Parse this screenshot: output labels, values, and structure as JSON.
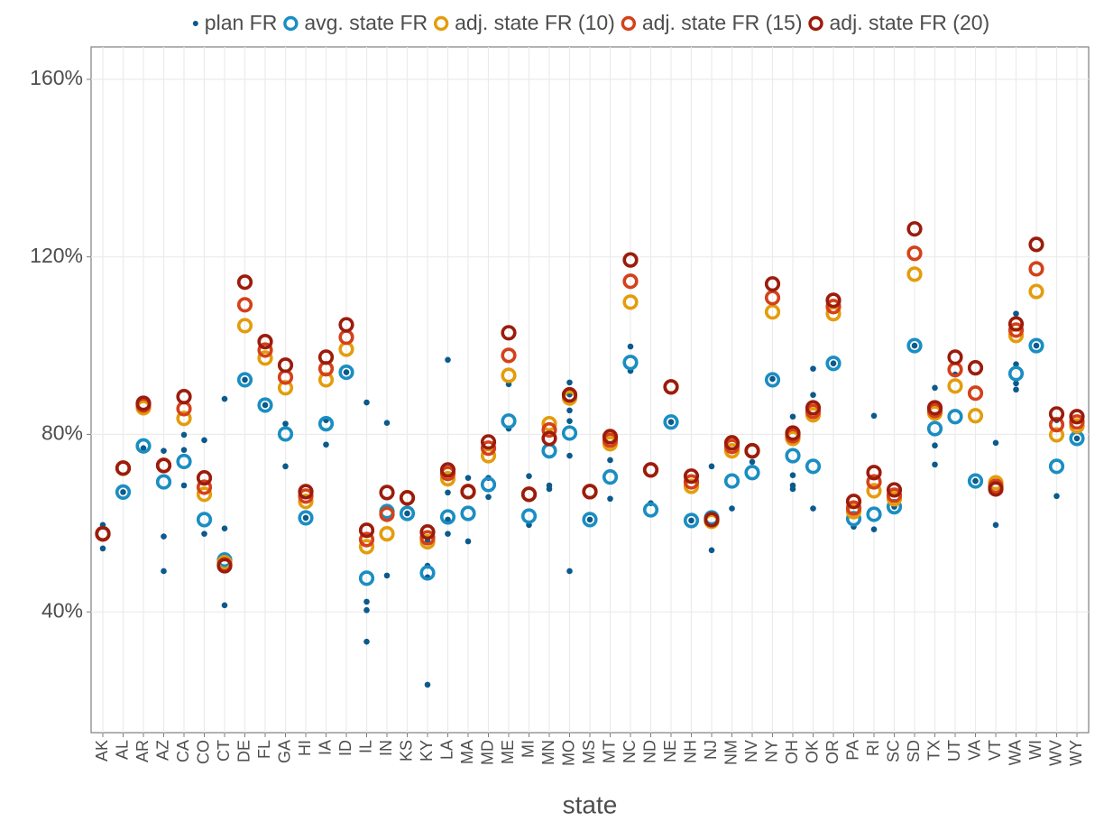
{
  "chart_data": {
    "type": "dot",
    "x_label": "state",
    "legend": "top",
    "grid": true,
    "ylim": [
      12.8,
      167.3
    ],
    "yticks": [
      {
        "value": 40,
        "label": "40%"
      },
      {
        "value": 80,
        "label": "80%"
      },
      {
        "value": 120,
        "label": "120%"
      },
      {
        "value": 160,
        "label": "160%"
      }
    ],
    "categories": [
      "AK",
      "AL",
      "AR",
      "AZ",
      "CA",
      "CO",
      "CT",
      "DE",
      "FL",
      "GA",
      "HI",
      "IA",
      "ID",
      "IL",
      "IN",
      "KS",
      "KY",
      "LA",
      "MA",
      "MD",
      "ME",
      "MI",
      "MN",
      "MO",
      "MS",
      "MT",
      "NC",
      "ND",
      "NE",
      "NH",
      "NJ",
      "NM",
      "NV",
      "NY",
      "OH",
      "OK",
      "OR",
      "PA",
      "RI",
      "SC",
      "SD",
      "TX",
      "UT",
      "VA",
      "VT",
      "WA",
      "WI",
      "WV",
      "WY"
    ],
    "series": [
      {
        "name": "plan FR",
        "color": "#0b5a8c",
        "x": [
          "AK",
          "AK",
          "AL",
          "AR",
          "AZ",
          "AZ",
          "AZ",
          "CA",
          "CA",
          "CA",
          "CO",
          "CO",
          "CT",
          "CT",
          "CT",
          "DE",
          "FL",
          "GA",
          "GA",
          "HI",
          "IA",
          "IA",
          "ID",
          "IL",
          "IL",
          "IL",
          "IL",
          "IN",
          "IN",
          "KS",
          "KY",
          "KY",
          "KY",
          "KY",
          "LA",
          "LA",
          "LA",
          "LA",
          "MA",
          "MA",
          "MD",
          "MD",
          "ME",
          "ME",
          "MI",
          "MI",
          "MN",
          "MN",
          "MO",
          "MO",
          "MO",
          "MO",
          "MO",
          "MO",
          "MS",
          "MT",
          "MT",
          "NC",
          "NC",
          "ND",
          "NE",
          "NH",
          "NJ",
          "NJ",
          "NM",
          "NV",
          "NY",
          "OH",
          "OH",
          "OH",
          "OH",
          "OK",
          "OK",
          "OK",
          "OR",
          "PA",
          "RI",
          "RI",
          "SC",
          "SD",
          "TX",
          "TX",
          "TX",
          "UT",
          "VA",
          "VT",
          "VT",
          "WA",
          "WA",
          "WA",
          "WA",
          "WI",
          "WV",
          "WV",
          "WY"
        ],
        "values": [
          59.6,
          54.3,
          67.0,
          76.9,
          76.3,
          57.0,
          49.2,
          79.9,
          76.5,
          68.5,
          78.7,
          57.6,
          88.0,
          58.8,
          41.5,
          92.3,
          86.6,
          82.4,
          72.8,
          61.2,
          83.2,
          77.7,
          94.0,
          87.2,
          42.3,
          40.4,
          33.3,
          82.6,
          48.2,
          62.2,
          56.0,
          50.4,
          47.8,
          23.6,
          96.8,
          66.9,
          60.8,
          57.6,
          70.2,
          55.9,
          70.2,
          65.9,
          91.3,
          81.3,
          70.6,
          59.6,
          68.5,
          67.7,
          91.7,
          89.0,
          85.4,
          83.0,
          75.2,
          49.2,
          60.8,
          74.2,
          65.5,
          99.8,
          94.3,
          64.5,
          82.8,
          60.6,
          72.8,
          53.9,
          63.3,
          73.8,
          92.5,
          84.0,
          70.8,
          68.5,
          67.7,
          94.8,
          88.9,
          63.3,
          96.0,
          59.2,
          84.2,
          58.6,
          63.7,
          100.0,
          90.5,
          77.5,
          73.2,
          93.5,
          69.5,
          78.1,
          59.6,
          107.2,
          95.8,
          91.5,
          90.1,
          100.0,
          83.2,
          66.1,
          79.1
        ]
      },
      {
        "name": "avg. state FR",
        "color": "#1a8ec2",
        "values": [
          57.6,
          67.0,
          77.4,
          69.3,
          73.9,
          60.8,
          51.7,
          92.3,
          86.6,
          80.1,
          61.2,
          82.4,
          94.0,
          47.6,
          62.6,
          62.2,
          48.8,
          61.4,
          62.2,
          68.7,
          83.0,
          61.6,
          76.3,
          80.3,
          60.8,
          70.4,
          96.2,
          63.0,
          82.8,
          60.6,
          61.2,
          69.5,
          71.4,
          92.3,
          75.2,
          72.8,
          96.0,
          61.0,
          62.0,
          63.7,
          100.0,
          81.3,
          84.0,
          69.5,
          68.1,
          93.7,
          100.0,
          72.8,
          79.1
        ]
      },
      {
        "name": "adj. state FR (10)",
        "color": "#e39d0c",
        "values": [
          57.6,
          72.4,
          86.0,
          73.0,
          83.6,
          66.5,
          51.1,
          104.5,
          97.2,
          90.5,
          64.9,
          92.3,
          99.2,
          54.7,
          57.6,
          65.7,
          55.8,
          70.0,
          67.1,
          75.2,
          93.3,
          66.5,
          82.4,
          88.2,
          67.1,
          77.9,
          109.8,
          72.0,
          90.7,
          68.3,
          60.4,
          76.3,
          76.3,
          107.6,
          79.1,
          84.4,
          107.2,
          62.6,
          67.3,
          65.5,
          116.1,
          84.8,
          90.9,
          84.2,
          69.1,
          102.3,
          112.2,
          79.9,
          81.9
        ]
      },
      {
        "name": "adj. state FR (15)",
        "color": "#d4411a",
        "values": [
          57.6,
          72.4,
          86.6,
          73.0,
          85.8,
          68.1,
          50.6,
          109.2,
          99.0,
          92.9,
          66.1,
          94.8,
          101.9,
          56.3,
          62.0,
          65.7,
          56.7,
          71.2,
          67.1,
          76.9,
          97.8,
          66.5,
          81.0,
          88.9,
          67.1,
          78.7,
          114.5,
          72.0,
          90.7,
          69.3,
          60.8,
          77.3,
          76.3,
          110.8,
          79.7,
          85.2,
          108.8,
          63.4,
          69.3,
          66.3,
          120.8,
          85.4,
          94.6,
          89.3,
          68.3,
          103.5,
          117.3,
          82.2,
          82.8
        ]
      },
      {
        "name": "adj. state FR (20)",
        "color": "#9b1c0c",
        "values": [
          57.6,
          72.4,
          87.0,
          73.0,
          88.5,
          70.2,
          50.4,
          114.3,
          100.9,
          95.6,
          67.1,
          97.4,
          104.7,
          58.4,
          66.9,
          65.7,
          58.0,
          72.0,
          67.1,
          78.3,
          102.9,
          66.5,
          79.1,
          88.9,
          67.1,
          79.5,
          119.3,
          72.0,
          90.7,
          70.6,
          60.8,
          78.1,
          76.3,
          113.9,
          80.3,
          86.0,
          110.2,
          64.9,
          71.4,
          67.5,
          126.3,
          86.0,
          97.4,
          95.0,
          67.7,
          104.9,
          122.8,
          84.6,
          84.0
        ]
      }
    ]
  }
}
